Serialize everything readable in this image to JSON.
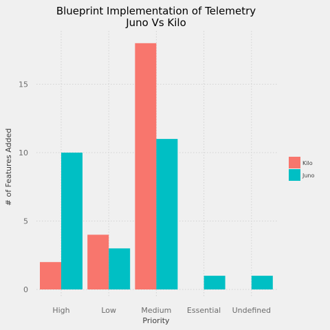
{
  "chart_data": {
    "type": "bar",
    "title": [
      "Blueprint Implementation of Telemetry",
      "Juno Vs Kilo"
    ],
    "xlabel": "Priority",
    "ylabel": "# of Features Added",
    "categories": [
      "High",
      "Low",
      "Medium",
      "Essential",
      "Undefined"
    ],
    "series": [
      {
        "name": "Kilo",
        "color": "#f8766d",
        "values": [
          2,
          4,
          18,
          0,
          0
        ]
      },
      {
        "name": "Juno",
        "color": "#00bfc4",
        "values": [
          10,
          3,
          11,
          1,
          1
        ]
      }
    ],
    "ylim": [
      0,
      19
    ],
    "yticks": [
      0,
      5,
      10,
      15
    ],
    "grid": true,
    "legend_position": "right",
    "background": "#f0f0f0"
  }
}
